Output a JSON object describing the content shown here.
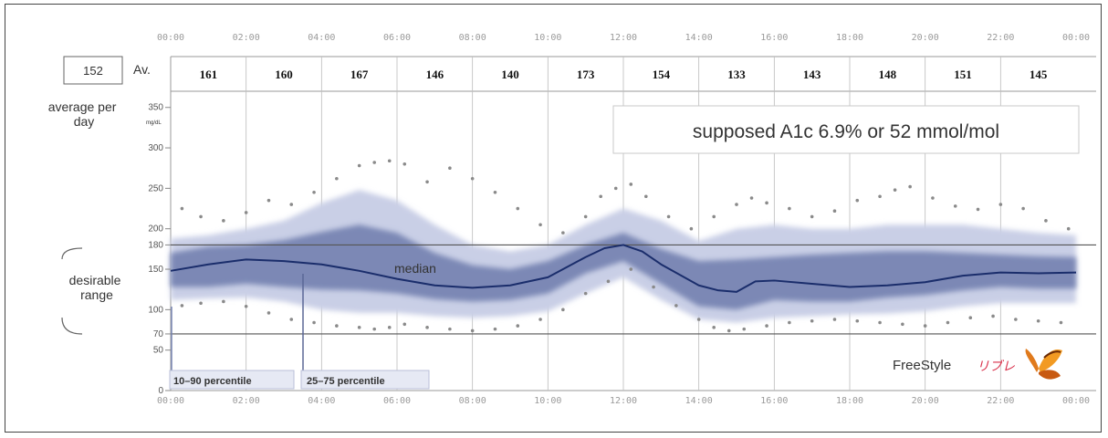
{
  "chart_data": {
    "type": "area",
    "title": "",
    "x_ticks": [
      "00:00",
      "02:00",
      "04:00",
      "06:00",
      "08:00",
      "10:00",
      "12:00",
      "14:00",
      "16:00",
      "18:00",
      "20:00",
      "22:00",
      "00:00"
    ],
    "y_ticks": [
      0,
      50,
      70,
      100,
      150,
      180,
      200,
      250,
      300,
      350
    ],
    "y_unit": "mg/dL",
    "ylim": [
      0,
      370
    ],
    "xlim_hours": [
      0,
      24
    ],
    "overall_average": "152",
    "average_label": "Av.",
    "hourly_averages": [
      "161",
      "160",
      "167",
      "146",
      "140",
      "173",
      "154",
      "133",
      "143",
      "148",
      "151",
      "145"
    ],
    "average_per_day_label": "average per day",
    "desirable_range_label": "desirable range",
    "desirable_range": [
      70,
      180
    ],
    "target_lines": [
      70,
      180
    ],
    "annotation": "supposed A1c 6.9% or 52 mmol/mol",
    "median_label": "median",
    "legend": {
      "outer_band": "10–90 percentile",
      "inner_band": "25–75 percentile"
    },
    "logo": {
      "text": "FreeStyle",
      "subtext": "リブレ"
    },
    "colors": {
      "outer_band": "#c9cfe6",
      "inner_band": "#7b88b5",
      "median": "#1a2d6b",
      "dots": "#8a8a8a",
      "grid": "#bdbdbd",
      "logo_text": "#1a3b8f",
      "logo_sub": "#d9304a"
    },
    "series": [
      {
        "name": "median",
        "x": [
          0,
          1,
          2,
          3,
          4,
          5,
          6,
          7,
          8,
          9,
          10,
          11,
          11.5,
          12,
          12.5,
          13,
          14,
          14.5,
          15,
          15.5,
          16,
          17,
          18,
          19,
          20,
          21,
          22,
          23,
          24
        ],
        "y": [
          148,
          156,
          162,
          160,
          156,
          148,
          138,
          130,
          127,
          130,
          140,
          165,
          176,
          180,
          172,
          156,
          130,
          124,
          122,
          135,
          136,
          132,
          128,
          130,
          134,
          142,
          146,
          145,
          146
        ]
      },
      {
        "name": "p25",
        "x": [
          0,
          1,
          2,
          3,
          4,
          5,
          6,
          7,
          8,
          9,
          10,
          11,
          12,
          13,
          14,
          15,
          16,
          17,
          18,
          19,
          20,
          21,
          22,
          23,
          24
        ],
        "y": [
          128,
          128,
          132,
          128,
          125,
          124,
          120,
          113,
          110,
          112,
          120,
          145,
          160,
          132,
          104,
          100,
          112,
          110,
          110,
          115,
          118,
          124,
          128,
          126,
          126
        ]
      },
      {
        "name": "p75",
        "x": [
          0,
          1,
          2,
          3,
          4,
          5,
          6,
          7,
          8,
          9,
          10,
          11,
          12,
          13,
          14,
          15,
          16,
          17,
          18,
          19,
          20,
          21,
          22,
          23,
          24
        ],
        "y": [
          170,
          178,
          180,
          186,
          196,
          205,
          195,
          170,
          155,
          150,
          160,
          180,
          195,
          175,
          160,
          162,
          165,
          168,
          170,
          172,
          172,
          170,
          168,
          166,
          165
        ]
      },
      {
        "name": "p10",
        "x": [
          0,
          1,
          2,
          3,
          4,
          5,
          6,
          7,
          8,
          9,
          10,
          11,
          12,
          13,
          14,
          15,
          16,
          17,
          18,
          19,
          20,
          21,
          22,
          23,
          24
        ],
        "y": [
          112,
          114,
          115,
          110,
          100,
          96,
          96,
          92,
          90,
          92,
          98,
          120,
          140,
          112,
          88,
          84,
          90,
          92,
          94,
          95,
          98,
          104,
          108,
          108,
          108
        ]
      },
      {
        "name": "p90",
        "x": [
          0,
          1,
          2,
          3,
          4,
          5,
          6,
          7,
          8,
          9,
          10,
          11,
          12,
          13,
          14,
          15,
          16,
          17,
          18,
          19,
          20,
          21,
          22,
          23,
          24
        ],
        "y": [
          188,
          192,
          200,
          210,
          232,
          248,
          235,
          205,
          180,
          172,
          180,
          205,
          225,
          210,
          185,
          200,
          205,
          200,
          200,
          205,
          205,
          205,
          200,
          195,
          192
        ]
      },
      {
        "name": "dots-upper",
        "x": [
          0.3,
          0.8,
          1.4,
          2.0,
          2.6,
          3.2,
          3.8,
          4.4,
          5.0,
          5.4,
          5.8,
          6.2,
          6.8,
          7.4,
          8.0,
          8.6,
          9.2,
          9.8,
          10.4,
          11.0,
          11.4,
          11.8,
          12.2,
          12.6,
          13.2,
          13.8,
          14.4,
          15.0,
          15.4,
          15.8,
          16.4,
          17.0,
          17.6,
          18.2,
          18.8,
          19.2,
          19.6,
          20.2,
          20.8,
          21.4,
          22.0,
          22.6,
          23.2,
          23.8
        ],
        "y": [
          225,
          215,
          210,
          220,
          235,
          230,
          245,
          262,
          278,
          282,
          284,
          280,
          258,
          275,
          262,
          245,
          225,
          205,
          195,
          215,
          240,
          250,
          255,
          240,
          215,
          200,
          215,
          230,
          238,
          232,
          225,
          215,
          222,
          235,
          240,
          248,
          252,
          238,
          228,
          224,
          230,
          225,
          210,
          200
        ]
      },
      {
        "name": "dots-lower",
        "x": [
          0.3,
          0.8,
          1.4,
          2.0,
          2.6,
          3.2,
          3.8,
          4.4,
          5.0,
          5.4,
          5.8,
          6.2,
          6.8,
          7.4,
          8.0,
          8.6,
          9.2,
          9.8,
          10.4,
          11.0,
          11.6,
          12.2,
          12.8,
          13.4,
          14.0,
          14.4,
          14.8,
          15.2,
          15.8,
          16.4,
          17.0,
          17.6,
          18.2,
          18.8,
          19.4,
          20.0,
          20.6,
          21.2,
          21.8,
          22.4,
          23.0,
          23.6
        ],
        "y": [
          105,
          108,
          110,
          104,
          96,
          88,
          84,
          80,
          78,
          76,
          78,
          82,
          78,
          76,
          74,
          76,
          80,
          88,
          100,
          120,
          135,
          150,
          128,
          105,
          88,
          78,
          74,
          76,
          80,
          84,
          86,
          88,
          86,
          84,
          82,
          80,
          84,
          90,
          92,
          88,
          86,
          84
        ]
      }
    ]
  }
}
